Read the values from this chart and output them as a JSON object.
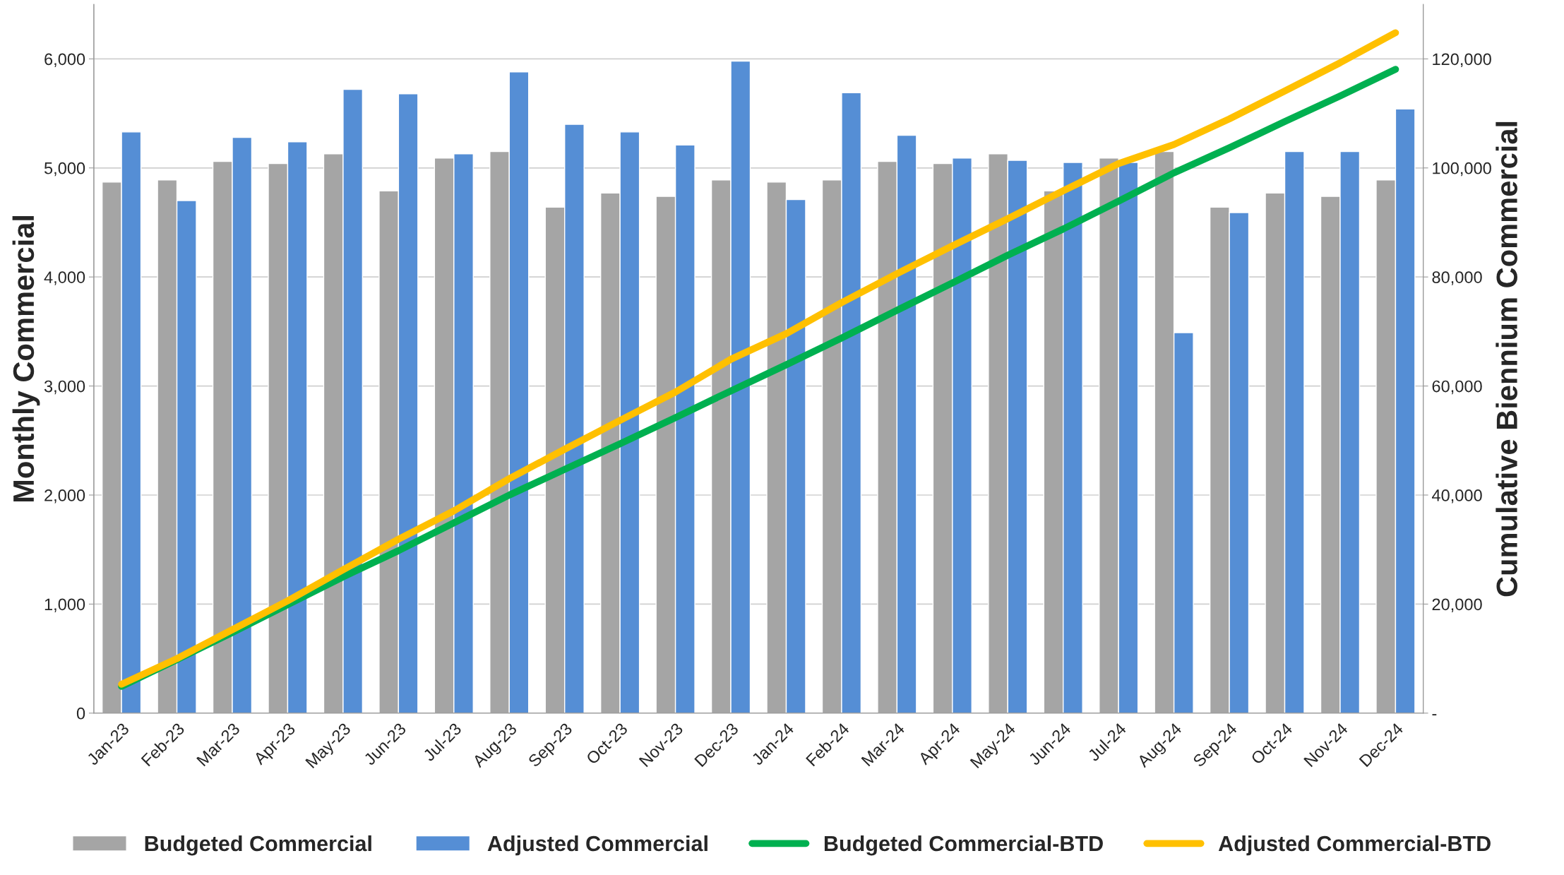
{
  "chart_data": {
    "type": "bar",
    "ylabel": "Monthly Commercial",
    "y2label": "Cumulative Biennium Commercial",
    "categories": [
      "Jan-23",
      "Feb-23",
      "Mar-23",
      "Apr-23",
      "May-23",
      "Jun-23",
      "Jul-23",
      "Aug-23",
      "Sep-23",
      "Oct-23",
      "Nov-23",
      "Dec-23",
      "Jan-24",
      "Feb-24",
      "Mar-24",
      "Apr-24",
      "May-24",
      "Jun-24",
      "Jul-24",
      "Aug-24",
      "Sep-24",
      "Oct-24",
      "Nov-24",
      "Dec-24"
    ],
    "series": [
      {
        "name": "Budgeted Commercial",
        "color": "#a5a5a5",
        "values": [
          4870,
          4890,
          5060,
          5040,
          5130,
          4790,
          5090,
          5150,
          4640,
          4770,
          4740,
          4890,
          4870,
          4890,
          5060,
          5040,
          5130,
          4790,
          5090,
          5150,
          4640,
          4770,
          4740,
          4890
        ]
      },
      {
        "name": "Adjusted Commercial",
        "color": "#558ed5",
        "values": [
          5330,
          4700,
          5280,
          5240,
          5720,
          5680,
          5130,
          5880,
          5400,
          5330,
          5210,
          5980,
          4710,
          5690,
          5300,
          5090,
          5070,
          5050,
          5050,
          3490,
          4590,
          5150,
          5150,
          5540
        ]
      },
      {
        "name": "Budgeted Commercial-BTD",
        "type": "line",
        "axis": "y2",
        "color": "#00b050",
        "values": [
          4900,
          9800,
          14800,
          19900,
          25000,
          29800,
          34900,
          40000,
          44700,
          49400,
          54200,
          59100,
          63900,
          68800,
          73900,
          78900,
          84000,
          88800,
          93900,
          99100,
          103700,
          108500,
          113200,
          118100
        ]
      },
      {
        "name": "Adjusted Commercial-BTD",
        "type": "line",
        "axis": "y2",
        "color": "#ffc000",
        "values": [
          5300,
          10000,
          15300,
          20600,
          26300,
          31900,
          37100,
          43000,
          48400,
          53700,
          58900,
          64900,
          69600,
          75300,
          80600,
          85700,
          90700,
          95800,
          100800,
          104300,
          109000,
          114100,
          119300,
          124800
        ]
      }
    ],
    "ylim": [
      0,
      6500
    ],
    "yticks": [
      {
        "value": 0,
        "label": "0"
      },
      {
        "value": 1000,
        "label": "1,000"
      },
      {
        "value": 2000,
        "label": "2,000"
      },
      {
        "value": 3000,
        "label": "3,000"
      },
      {
        "value": 4000,
        "label": "4,000"
      },
      {
        "value": 5000,
        "label": "5,000"
      },
      {
        "value": 6000,
        "label": "6,000"
      }
    ],
    "y2lim": [
      0,
      130000
    ],
    "y2ticks": [
      {
        "value": 0,
        "label": "-"
      },
      {
        "value": 20000,
        "label": "20,000"
      },
      {
        "value": 40000,
        "label": "40,000"
      },
      {
        "value": 60000,
        "label": "60,000"
      },
      {
        "value": 80000,
        "label": "80,000"
      },
      {
        "value": 100000,
        "label": "100,000"
      },
      {
        "value": 120000,
        "label": "120,000"
      }
    ],
    "grid": "y",
    "legend": "bottom",
    "marker": "none",
    "line_style": "solid"
  }
}
